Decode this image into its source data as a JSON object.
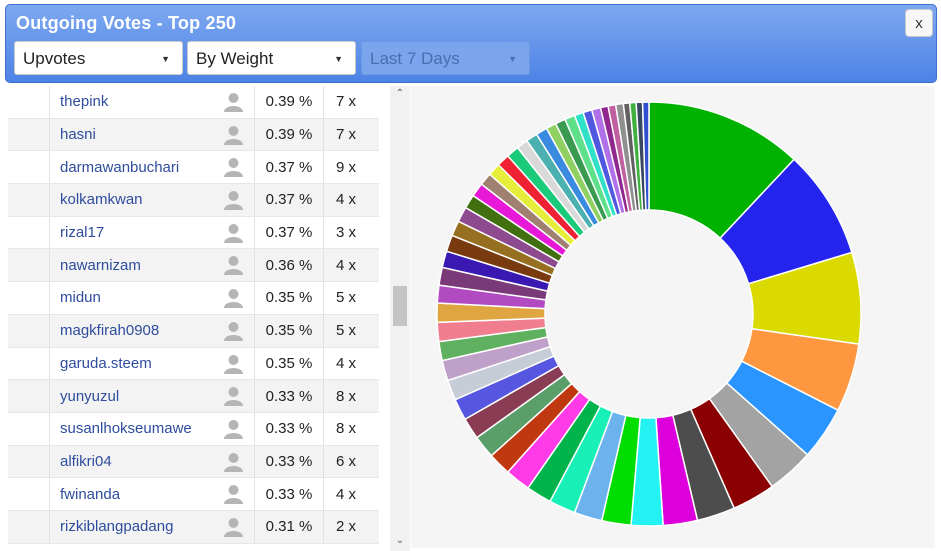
{
  "dialog": {
    "title": "Outgoing Votes - Top 250",
    "close_label": "x"
  },
  "filters": {
    "type": "Upvotes",
    "sort": "By Weight",
    "period": "Last 7 Days"
  },
  "rows": [
    {
      "name": "thepink",
      "pct": "0.39 %",
      "count": "7 x"
    },
    {
      "name": "hasni",
      "pct": "0.39 %",
      "count": "7 x"
    },
    {
      "name": "darmawanbuchari",
      "pct": "0.37 %",
      "count": "9 x"
    },
    {
      "name": "kolkamkwan",
      "pct": "0.37 %",
      "count": "4 x"
    },
    {
      "name": "rizal17",
      "pct": "0.37 %",
      "count": "3 x"
    },
    {
      "name": "nawarnizam",
      "pct": "0.36 %",
      "count": "4 x"
    },
    {
      "name": "midun",
      "pct": "0.35 %",
      "count": "5 x"
    },
    {
      "name": "magkfirah0908",
      "pct": "0.35 %",
      "count": "5 x"
    },
    {
      "name": "garuda.steem",
      "pct": "0.35 %",
      "count": "4 x"
    },
    {
      "name": "yunyuzul",
      "pct": "0.33 %",
      "count": "8 x"
    },
    {
      "name": "susanlhokseumawe",
      "pct": "0.33 %",
      "count": "8 x"
    },
    {
      "name": "alfikri04",
      "pct": "0.33 %",
      "count": "6 x"
    },
    {
      "name": "fwinanda",
      "pct": "0.33 %",
      "count": "4 x"
    },
    {
      "name": "rizkiblangpadang",
      "pct": "0.31 %",
      "count": "2 x"
    }
  ],
  "chart_data": {
    "type": "pie",
    "donut": true,
    "slices": [
      {
        "value": 12.4,
        "color": "#00b200"
      },
      {
        "value": 8.6,
        "color": "#2424ee"
      },
      {
        "value": 7.2,
        "color": "#dada00"
      },
      {
        "value": 5.4,
        "color": "#ff9640"
      },
      {
        "value": 4.2,
        "color": "#2b95ff"
      },
      {
        "value": 3.7,
        "color": "#a3a3a3"
      },
      {
        "value": 3.4,
        "color": "#8b0000"
      },
      {
        "value": 3.0,
        "color": "#4d4d4d"
      },
      {
        "value": 2.7,
        "color": "#dd00dd"
      },
      {
        "value": 2.5,
        "color": "#24f2f2"
      },
      {
        "value": 2.3,
        "color": "#00dd00"
      },
      {
        "value": 2.2,
        "color": "#6cb3ee"
      },
      {
        "value": 2.1,
        "color": "#18f0b8"
      },
      {
        "value": 2.0,
        "color": "#00b34a"
      },
      {
        "value": 2.0,
        "color": "#ff3ae6"
      },
      {
        "value": 1.8,
        "color": "#c03810"
      },
      {
        "value": 1.8,
        "color": "#5a9e6a"
      },
      {
        "value": 1.7,
        "color": "#8a3c54"
      },
      {
        "value": 1.7,
        "color": "#5656e0"
      },
      {
        "value": 1.6,
        "color": "#c6cdd6"
      },
      {
        "value": 1.6,
        "color": "#bfa0c8"
      },
      {
        "value": 1.5,
        "color": "#5fb05f"
      },
      {
        "value": 1.5,
        "color": "#f07e8e"
      },
      {
        "value": 1.5,
        "color": "#dfa540"
      },
      {
        "value": 1.4,
        "color": "#b24ac2"
      },
      {
        "value": 1.4,
        "color": "#7a3a7a"
      },
      {
        "value": 1.3,
        "color": "#3a18b2"
      },
      {
        "value": 1.3,
        "color": "#7a3a10"
      },
      {
        "value": 1.2,
        "color": "#967020"
      },
      {
        "value": 1.2,
        "color": "#8e4a8e"
      },
      {
        "value": 1.1,
        "color": "#407010"
      },
      {
        "value": 1.1,
        "color": "#e818d8"
      },
      {
        "value": 1.0,
        "color": "#a08070"
      },
      {
        "value": 1.0,
        "color": "#e6ee3a"
      },
      {
        "value": 1.0,
        "color": "#ee2232"
      },
      {
        "value": 1.0,
        "color": "#1ccb7a"
      },
      {
        "value": 0.9,
        "color": "#d9d9d9"
      },
      {
        "value": 0.9,
        "color": "#4ab0b0"
      },
      {
        "value": 0.9,
        "color": "#3a8ae0"
      },
      {
        "value": 0.8,
        "color": "#90d060"
      },
      {
        "value": 0.8,
        "color": "#3a9a50"
      },
      {
        "value": 0.8,
        "color": "#5ee08a"
      },
      {
        "value": 0.7,
        "color": "#30e0c8"
      },
      {
        "value": 0.7,
        "color": "#5058e0"
      },
      {
        "value": 0.7,
        "color": "#b070e8"
      },
      {
        "value": 0.6,
        "color": "#902890"
      },
      {
        "value": 0.6,
        "color": "#c060a0"
      },
      {
        "value": 0.6,
        "color": "#909090"
      },
      {
        "value": 0.5,
        "color": "#606060"
      },
      {
        "value": 0.5,
        "color": "#40b040"
      },
      {
        "value": 0.5,
        "color": "#384860"
      },
      {
        "value": 0.5,
        "color": "#3050d0"
      }
    ]
  }
}
